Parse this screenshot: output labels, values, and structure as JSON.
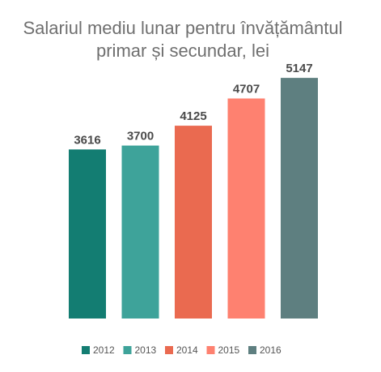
{
  "chart_data": {
    "type": "bar",
    "title_lines": [
      "Salariul mediu lunar pentru învățământul",
      "primar și secundar, lei"
    ],
    "categories": [
      "2012",
      "2013",
      "2014",
      "2015",
      "2016"
    ],
    "values": [
      3616,
      3700,
      4125,
      4707,
      5147
    ],
    "colors": [
      "#137d72",
      "#3ea39a",
      "#ea6a50",
      "#fe8170",
      "#5e7f80"
    ],
    "xlabel": "",
    "ylabel": "",
    "ylim": [
      0,
      5600
    ],
    "grid": false,
    "legend": {
      "position": "bottom",
      "entries": [
        "2012",
        "2013",
        "2014",
        "2015",
        "2016"
      ]
    }
  }
}
